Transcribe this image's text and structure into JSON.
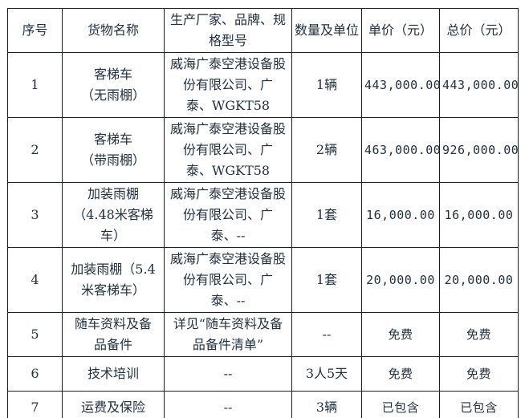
{
  "table": {
    "headers": [
      "序号",
      "货物名称",
      "生产厂家、品牌、规格型号",
      "数量及单位",
      "单价（元）",
      "总价（元）"
    ],
    "rows": [
      {
        "no": "1",
        "name": "客梯车\n（无雨棚）",
        "maker": "威海广泰空港设备股\n份有限公司、广\n泰、WGKT58",
        "qty": "1辆",
        "unit_price": "443,000.00",
        "total_price": "443,000.00"
      },
      {
        "no": "2",
        "name": "客梯车\n（带雨棚）",
        "maker": "威海广泰空港设备股\n份有限公司、广\n泰、WGKT58",
        "qty": "2辆",
        "unit_price": "463,000.00",
        "total_price": "926,000.00"
      },
      {
        "no": "3",
        "name": "加装雨棚\n（4.48米客梯\n车）",
        "maker": "威海广泰空港设备股\n份有限公司、广\n泰、--",
        "qty": "1套",
        "unit_price": "16,000.00",
        "total_price": "16,000.00"
      },
      {
        "no": "4",
        "name": "加装雨棚（5.4\n米客梯车）",
        "maker": "威海广泰空港设备股\n份有限公司、广\n泰、--",
        "qty": "1套",
        "unit_price": "20,000.00",
        "total_price": "20,000.00"
      },
      {
        "no": "5",
        "name": "随车资料及备\n品备件",
        "maker": "详见“随车资料及备\n品备件清单”",
        "qty": "--",
        "unit_price": "免费",
        "total_price": "免费"
      },
      {
        "no": "6",
        "name": "技术培训",
        "maker": "--",
        "qty": "3人5天",
        "unit_price": "免费",
        "total_price": "免费"
      },
      {
        "no": "7",
        "name": "运费及保险",
        "maker": "--",
        "qty": "3辆",
        "unit_price": "已包含",
        "total_price": "已包含"
      }
    ]
  },
  "colors": {
    "text": "#223040",
    "border": "#1b1f26",
    "background": "#ffffff"
  }
}
